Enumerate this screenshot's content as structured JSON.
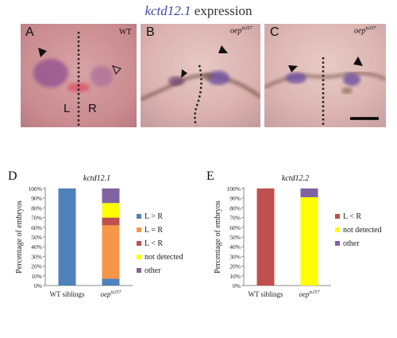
{
  "figure": {
    "title_gene": "kctd12.1",
    "title_suffix": " expression",
    "panels": {
      "A": {
        "label": "A",
        "corner": "WT",
        "left_mark": "L",
        "right_mark": "R"
      },
      "B": {
        "label": "B",
        "corner_italic": "oep",
        "corner_sup": "tz257"
      },
      "C": {
        "label": "C",
        "corner_italic": "oep",
        "corner_sup": "tz257"
      }
    }
  },
  "chart_data": [
    {
      "type": "bar",
      "stacked": true,
      "panel_label": "D",
      "title": "kctd12.1",
      "ylabel": "Percentage of embryos",
      "ylim": [
        0,
        100
      ],
      "yticks": [
        "0%",
        "10%",
        "20%",
        "30%",
        "40%",
        "50%",
        "60%",
        "70%",
        "80%",
        "90%",
        "100%"
      ],
      "categories": [
        "WT siblings",
        "oep"
      ],
      "category_sup": [
        "",
        "tz257"
      ],
      "series": [
        {
          "name": "L > R",
          "color": "#4f81bd",
          "values": [
            100,
            7
          ]
        },
        {
          "name": "L = R",
          "color": "#f79646",
          "values": [
            0,
            55
          ]
        },
        {
          "name": "L < R",
          "color": "#c0504d",
          "values": [
            0,
            8
          ]
        },
        {
          "name": "not detected",
          "color": "#ffff00",
          "values": [
            0,
            15
          ]
        },
        {
          "name": "other",
          "color": "#8064a2",
          "values": [
            0,
            15
          ]
        }
      ],
      "legend": "right"
    },
    {
      "type": "bar",
      "stacked": true,
      "panel_label": "E",
      "title": "kctd12.2",
      "ylabel": "Percentage of embryos",
      "ylim": [
        0,
        100
      ],
      "yticks": [
        "0%",
        "10%",
        "20%",
        "30%",
        "40%",
        "50%",
        "60%",
        "70%",
        "80%",
        "90%",
        "100%"
      ],
      "categories": [
        "WT siblings",
        "oep"
      ],
      "category_sup": [
        "",
        "tz257"
      ],
      "series": [
        {
          "name": "L < R",
          "color": "#c0504d",
          "values": [
            100,
            0
          ]
        },
        {
          "name": "not detected",
          "color": "#ffff00",
          "values": [
            0,
            91
          ]
        },
        {
          "name": "other",
          "color": "#8064a2",
          "values": [
            0,
            9
          ]
        }
      ],
      "legend": "right"
    }
  ]
}
